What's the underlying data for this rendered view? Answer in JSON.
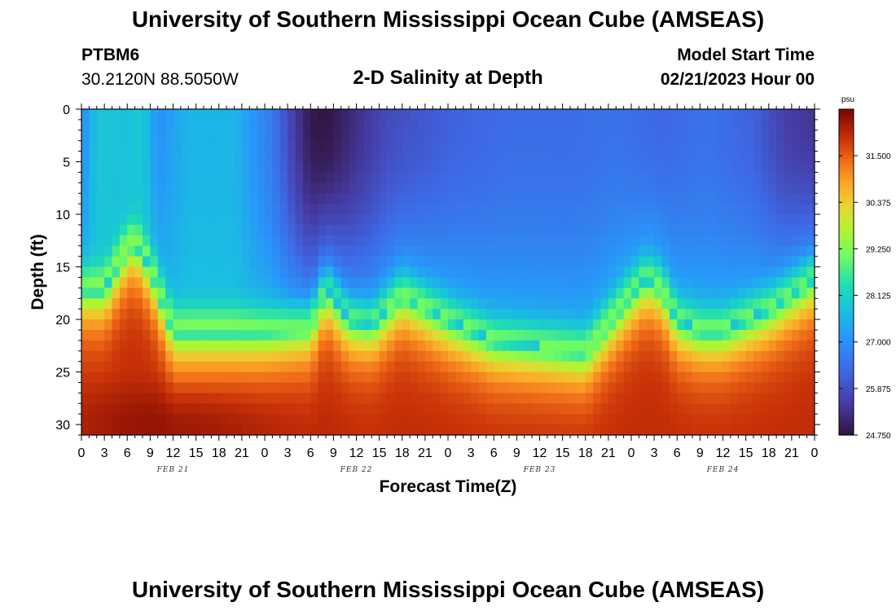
{
  "header": {
    "title": "University of Southern Mississippi Ocean Cube (AMSEAS)",
    "station": "PTBM6",
    "coordinates": "30.2120N  88.5050W",
    "subtitle": "2-D Salinity at Depth",
    "model_start_label": "Model Start Time",
    "model_start_value": "02/21/2023 Hour 00"
  },
  "footer": {
    "title": "University of Southern Mississippi Ocean Cube (AMSEAS)"
  },
  "colors": {
    "low": "#30123b",
    "mid": "#1ae4b6",
    "high": "#7a0403"
  },
  "chart_data": {
    "type": "heatmap",
    "title": "2-D Salinity at Depth",
    "xlabel": "Forecast Time(Z)",
    "ylabel": "Depth (ft)",
    "x_range_hours": [
      0,
      96
    ],
    "y_range_ft": [
      0,
      31
    ],
    "x_ticks_hours": [
      0,
      3,
      6,
      9,
      12,
      15,
      18,
      21,
      24,
      27,
      30,
      33,
      36,
      39,
      42,
      45,
      48,
      51,
      54,
      57,
      60,
      63,
      66,
      69,
      72,
      75,
      78,
      81,
      84,
      87,
      90,
      93,
      96
    ],
    "x_tick_labels": [
      "0",
      "3",
      "6",
      "9",
      "12",
      "15",
      "18",
      "21",
      "0",
      "3",
      "6",
      "9",
      "12",
      "15",
      "18",
      "21",
      "0",
      "3",
      "6",
      "9",
      "12",
      "15",
      "18",
      "21",
      "0",
      "3",
      "6",
      "9",
      "12",
      "15",
      "18",
      "21",
      "0"
    ],
    "day_labels": [
      {
        "label": "FEB 21",
        "hour": 12
      },
      {
        "label": "FEB 22",
        "hour": 36
      },
      {
        "label": "FEB 23",
        "hour": 60
      },
      {
        "label": "FEB 24",
        "hour": 84
      }
    ],
    "y_ticks": [
      0,
      5,
      10,
      15,
      20,
      25,
      30
    ],
    "y_tick_labels": [
      "0",
      "5",
      "10",
      "15",
      "20",
      "25",
      "30"
    ],
    "colorbar": {
      "unit": "psu",
      "min": 24.75,
      "max": 32.625,
      "ticks": [
        24.75,
        25.875,
        27.0,
        28.125,
        29.25,
        30.375,
        31.5
      ],
      "tick_labels": [
        "24.750",
        "25.875",
        "27.000",
        "28.125",
        "29.250",
        "30.375",
        "31.500"
      ]
    },
    "interface_depth_ft": {
      "hours": [
        0,
        3,
        6,
        7,
        9,
        12,
        18,
        24,
        30,
        32,
        35,
        38,
        42,
        48,
        54,
        60,
        66,
        72,
        74,
        76,
        78,
        81,
        84,
        90,
        96
      ],
      "depth": [
        17,
        17,
        13,
        12.5,
        15,
        21,
        21,
        21,
        20.5,
        17,
        20,
        20.5,
        17.5,
        20,
        22,
        22.5,
        23,
        17.5,
        16,
        17,
        20,
        21,
        21,
        19,
        16
      ]
    },
    "surface_salinity_psu": {
      "hours": [
        0,
        2,
        6,
        8,
        10,
        14,
        20,
        25,
        28,
        30,
        32,
        36,
        40,
        48,
        56,
        64,
        70,
        76,
        82,
        88,
        92,
        96
      ],
      "values": [
        26.9,
        27.9,
        27.8,
        28.0,
        27.0,
        27.6,
        27.6,
        26.6,
        25.5,
        24.9,
        24.8,
        25.3,
        25.8,
        26.2,
        26.4,
        26.4,
        26.5,
        26.3,
        26.5,
        26.2,
        25.6,
        25.4
      ]
    },
    "deep_salinity_psu": 32.0
  }
}
